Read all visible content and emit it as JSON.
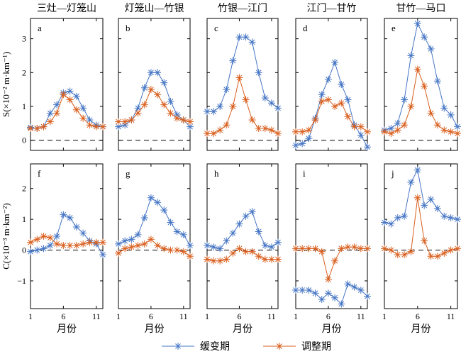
{
  "figure": {
    "panel_titles": [
      "三灶—灯笼山",
      "灯笼山—竹银",
      "竹银—江门",
      "江门—甘竹",
      "甘竹—马口"
    ],
    "xlabel": "月份",
    "row_ylabels": [
      "S(×10⁻² m·km⁻¹)",
      "C(×10⁻³ m·km⁻²)"
    ],
    "legend": [
      {
        "name": "缓变期",
        "color": "#4575c4"
      },
      {
        "name": "调整期",
        "color": "#d95f1e"
      }
    ],
    "colors": {
      "series1": "#4575c4",
      "series2": "#d95f1e"
    }
  },
  "chart_data": [
    {
      "type": "line",
      "label": "a",
      "x": [
        1,
        2,
        3,
        4,
        5,
        6,
        7,
        8,
        9,
        10,
        11,
        12
      ],
      "ylim": [
        -0.3,
        3.6
      ],
      "yticks": [
        0,
        1,
        2,
        3
      ],
      "series": [
        {
          "name": "缓变期",
          "values": [
            0.38,
            0.35,
            0.4,
            0.8,
            1.05,
            1.4,
            1.45,
            1.3,
            0.95,
            0.6,
            0.45,
            0.4
          ]
        },
        {
          "name": "调整期",
          "values": [
            0.35,
            0.35,
            0.4,
            0.55,
            0.8,
            1.35,
            1.2,
            0.9,
            0.65,
            0.45,
            0.4,
            0.4
          ]
        }
      ]
    },
    {
      "type": "line",
      "label": "b",
      "x": [
        1,
        2,
        3,
        4,
        5,
        6,
        7,
        8,
        9,
        10,
        11,
        12
      ],
      "ylim": [
        -0.3,
        3.6
      ],
      "yticks": [
        0,
        1,
        2,
        3
      ],
      "series": [
        {
          "name": "缓变期",
          "values": [
            0.4,
            0.45,
            0.6,
            0.95,
            1.55,
            2.0,
            2.0,
            1.7,
            1.15,
            0.75,
            0.6,
            0.4
          ]
        },
        {
          "name": "调整期",
          "values": [
            0.55,
            0.55,
            0.6,
            0.8,
            1.05,
            1.5,
            1.35,
            1.05,
            0.8,
            0.65,
            0.6,
            0.55
          ]
        }
      ]
    },
    {
      "type": "line",
      "label": "c",
      "x": [
        1,
        2,
        3,
        4,
        5,
        6,
        7,
        8,
        9,
        10,
        11,
        12
      ],
      "ylim": [
        -0.3,
        3.6
      ],
      "yticks": [
        0,
        1,
        2,
        3
      ],
      "series": [
        {
          "name": "缓变期",
          "values": [
            0.85,
            0.85,
            1.0,
            1.5,
            2.35,
            3.05,
            3.05,
            2.9,
            2.0,
            1.25,
            1.1,
            0.95
          ]
        },
        {
          "name": "调整期",
          "values": [
            0.2,
            0.2,
            0.3,
            0.45,
            1.0,
            1.85,
            1.2,
            0.6,
            0.35,
            0.35,
            0.3,
            0.2
          ]
        }
      ]
    },
    {
      "type": "line",
      "label": "d",
      "x": [
        1,
        2,
        3,
        4,
        5,
        6,
        7,
        8,
        9,
        10,
        11,
        12
      ],
      "ylim": [
        -0.3,
        3.6
      ],
      "yticks": [
        0,
        1,
        2,
        3
      ],
      "series": [
        {
          "name": "缓变期",
          "values": [
            -0.15,
            -0.1,
            0.05,
            0.65,
            1.35,
            1.8,
            2.3,
            1.65,
            1.2,
            0.45,
            0.15,
            -0.2
          ]
        },
        {
          "name": "调整期",
          "values": [
            0.25,
            0.25,
            0.3,
            0.6,
            1.15,
            1.2,
            1.0,
            1.1,
            0.7,
            0.4,
            0.4,
            0.25
          ]
        }
      ]
    },
    {
      "type": "line",
      "label": "e",
      "x": [
        1,
        2,
        3,
        4,
        5,
        6,
        7,
        8,
        9,
        10,
        11,
        12
      ],
      "ylim": [
        -0.3,
        3.6
      ],
      "yticks": [
        0,
        1,
        2,
        3
      ],
      "series": [
        {
          "name": "缓变期",
          "values": [
            0.3,
            0.35,
            0.5,
            1.2,
            2.5,
            3.45,
            3.05,
            2.7,
            1.75,
            0.95,
            0.75,
            0.4
          ]
        },
        {
          "name": "调整期",
          "values": [
            0.25,
            0.2,
            0.3,
            0.45,
            1.0,
            2.1,
            1.6,
            0.8,
            0.45,
            0.3,
            0.25,
            0.2
          ]
        }
      ]
    },
    {
      "type": "line",
      "label": "f",
      "x": [
        1,
        2,
        3,
        4,
        5,
        6,
        7,
        8,
        9,
        10,
        11,
        12
      ],
      "ylim": [
        -1.9,
        2.8
      ],
      "yticks": [
        -1,
        0,
        1,
        2
      ],
      "series": [
        {
          "name": "缓变期",
          "values": [
            -0.05,
            0.0,
            0.05,
            0.15,
            0.45,
            1.15,
            1.05,
            0.75,
            0.55,
            0.3,
            0.2,
            -0.15
          ]
        },
        {
          "name": "调整期",
          "values": [
            0.25,
            0.35,
            0.45,
            0.4,
            0.2,
            0.15,
            0.15,
            0.15,
            0.2,
            0.25,
            0.25,
            0.25
          ]
        }
      ]
    },
    {
      "type": "line",
      "label": "g",
      "x": [
        1,
        2,
        3,
        4,
        5,
        6,
        7,
        8,
        9,
        10,
        11,
        12
      ],
      "ylim": [
        -1.9,
        2.8
      ],
      "yticks": [
        -1,
        0,
        1,
        2
      ],
      "series": [
        {
          "name": "缓变期",
          "values": [
            0.2,
            0.3,
            0.35,
            0.5,
            1.05,
            1.7,
            1.55,
            1.3,
            0.9,
            0.6,
            0.5,
            0.15
          ]
        },
        {
          "name": "调整期",
          "values": [
            -0.1,
            0.05,
            0.1,
            0.15,
            0.2,
            0.35,
            0.15,
            0.05,
            0.0,
            0.0,
            -0.05,
            -0.2
          ]
        }
      ]
    },
    {
      "type": "line",
      "label": "h",
      "x": [
        1,
        2,
        3,
        4,
        5,
        6,
        7,
        8,
        9,
        10,
        11,
        12
      ],
      "ylim": [
        -1.9,
        2.8
      ],
      "yticks": [
        -1,
        0,
        1,
        2
      ],
      "series": [
        {
          "name": "缓变期",
          "values": [
            0.15,
            0.1,
            0.05,
            0.3,
            0.55,
            0.85,
            1.1,
            1.25,
            0.6,
            0.15,
            0.1,
            0.25
          ]
        },
        {
          "name": "调整期",
          "values": [
            -0.3,
            -0.35,
            -0.35,
            -0.3,
            -0.1,
            0.05,
            -0.05,
            -0.05,
            -0.2,
            -0.3,
            -0.3,
            -0.3
          ]
        }
      ]
    },
    {
      "type": "line",
      "label": "i",
      "x": [
        1,
        2,
        3,
        4,
        5,
        6,
        7,
        8,
        9,
        10,
        11,
        12
      ],
      "ylim": [
        -1.9,
        2.8
      ],
      "yticks": [
        -1,
        0,
        1,
        2
      ],
      "series": [
        {
          "name": "缓变期",
          "values": [
            -1.3,
            -1.3,
            -1.3,
            -1.4,
            -1.6,
            -1.4,
            -1.55,
            -1.75,
            -1.1,
            -1.2,
            -1.3,
            -1.5
          ]
        },
        {
          "name": "调整期",
          "values": [
            0.05,
            0.05,
            0.05,
            0.05,
            -0.05,
            -0.95,
            -0.35,
            0.05,
            0.1,
            0.1,
            0.05,
            0.05
          ]
        }
      ]
    },
    {
      "type": "line",
      "label": "j",
      "x": [
        1,
        2,
        3,
        4,
        5,
        6,
        7,
        8,
        9,
        10,
        11,
        12
      ],
      "ylim": [
        -1.9,
        2.8
      ],
      "yticks": [
        -1,
        0,
        1,
        2
      ],
      "series": [
        {
          "name": "缓变期",
          "values": [
            0.9,
            0.85,
            1.05,
            1.1,
            2.2,
            2.6,
            1.45,
            1.65,
            1.35,
            1.1,
            1.05,
            1.0
          ]
        },
        {
          "name": "调整期",
          "values": [
            0.05,
            0.0,
            -0.15,
            -0.15,
            -0.05,
            1.7,
            0.3,
            -0.2,
            -0.2,
            -0.1,
            0.0,
            0.05
          ]
        }
      ]
    }
  ]
}
